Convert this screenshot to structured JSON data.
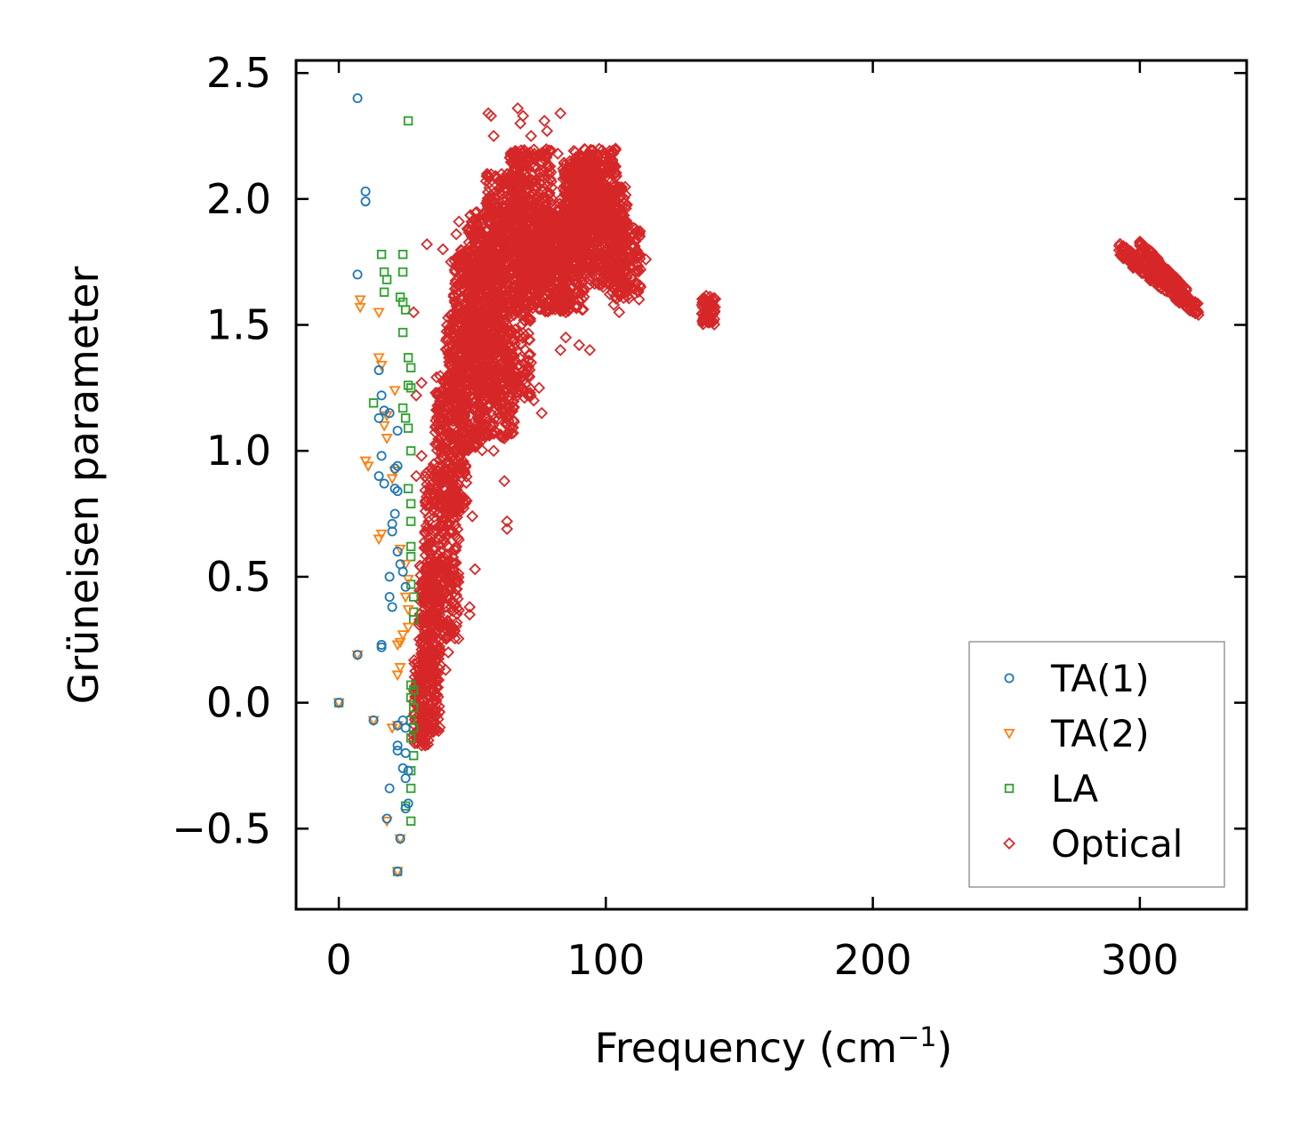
{
  "chart_data": {
    "type": "scatter",
    "title": "",
    "xlabel": "Frequency (cm",
    "xlabel_sup": "−1",
    "xlabel_tail": ")",
    "ylabel": "Grüneisen parameter",
    "xlim": [
      -16,
      340
    ],
    "ylim": [
      -0.82,
      2.55
    ],
    "xticks": [
      0,
      100,
      200,
      300
    ],
    "xtick_labels": [
      "0",
      "100",
      "200",
      "300"
    ],
    "yticks": [
      -0.5,
      0.0,
      0.5,
      1.0,
      1.5,
      2.0,
      2.5
    ],
    "ytick_labels": [
      "−0.5",
      "0.0",
      "0.5",
      "1.0",
      "1.5",
      "2.0",
      "2.5"
    ],
    "grid": false,
    "legend_position": "lower-right",
    "colors": {
      "TA(1)": "#1f77b4",
      "TA(2)": "#ff7f0e",
      "LA": "#2ca02c",
      "Optical": "#d62728"
    },
    "series": [
      {
        "name": "TA(1)",
        "marker": "circle",
        "points": [
          [
            0,
            0.0
          ],
          [
            7,
            2.4
          ],
          [
            10,
            2.03
          ],
          [
            10,
            1.99
          ],
          [
            7,
            1.7
          ],
          [
            15,
            1.32
          ],
          [
            16,
            1.22
          ],
          [
            17,
            1.16
          ],
          [
            15,
            1.13
          ],
          [
            19,
            1.15
          ],
          [
            22,
            1.08
          ],
          [
            16,
            0.98
          ],
          [
            15,
            0.9
          ],
          [
            17,
            0.87
          ],
          [
            21,
            0.93
          ],
          [
            22,
            0.94
          ],
          [
            21,
            0.85
          ],
          [
            22,
            0.84
          ],
          [
            21,
            0.75
          ],
          [
            20,
            0.71
          ],
          [
            20,
            0.68
          ],
          [
            22,
            0.6
          ],
          [
            23,
            0.55
          ],
          [
            24,
            0.52
          ],
          [
            19,
            0.5
          ],
          [
            25,
            0.46
          ],
          [
            19,
            0.42
          ],
          [
            20,
            0.38
          ],
          [
            16,
            0.23
          ],
          [
            16,
            0.22
          ],
          [
            7,
            0.19
          ],
          [
            13,
            -0.07
          ],
          [
            22,
            -0.09
          ],
          [
            24,
            -0.07
          ],
          [
            25,
            -0.1
          ],
          [
            22,
            -0.17
          ],
          [
            22,
            -0.19
          ],
          [
            25,
            -0.2
          ],
          [
            24,
            -0.26
          ],
          [
            25,
            -0.3
          ],
          [
            26,
            -0.27
          ],
          [
            19,
            -0.34
          ],
          [
            26,
            -0.4
          ],
          [
            25,
            -0.42
          ],
          [
            18,
            -0.46
          ],
          [
            23,
            -0.54
          ],
          [
            22,
            -0.67
          ]
        ]
      },
      {
        "name": "TA(2)",
        "marker": "triangle",
        "points": [
          [
            0,
            0.0
          ],
          [
            8,
            1.6
          ],
          [
            8,
            1.57
          ],
          [
            15,
            1.55
          ],
          [
            15,
            1.37
          ],
          [
            16,
            1.34
          ],
          [
            21,
            1.24
          ],
          [
            18,
            1.14
          ],
          [
            17,
            1.1
          ],
          [
            18,
            1.05
          ],
          [
            10,
            0.96
          ],
          [
            11,
            0.94
          ],
          [
            21,
            0.92
          ],
          [
            20,
            0.89
          ],
          [
            16,
            0.67
          ],
          [
            15,
            0.65
          ],
          [
            23,
            0.61
          ],
          [
            25,
            0.55
          ],
          [
            26,
            0.49
          ],
          [
            25,
            0.42
          ],
          [
            26,
            0.37
          ],
          [
            26,
            0.3
          ],
          [
            24,
            0.27
          ],
          [
            23,
            0.24
          ],
          [
            22,
            0.23
          ],
          [
            23,
            0.14
          ],
          [
            22,
            0.11
          ],
          [
            7,
            0.19
          ],
          [
            13,
            -0.07
          ],
          [
            20,
            -0.1
          ],
          [
            22,
            -0.09
          ],
          [
            18,
            -0.47
          ],
          [
            23,
            -0.54
          ],
          [
            22,
            -0.67
          ]
        ]
      },
      {
        "name": "LA",
        "marker": "square",
        "points": [
          [
            0,
            0.0
          ],
          [
            26,
            2.31
          ],
          [
            16,
            1.78
          ],
          [
            24,
            1.78
          ],
          [
            17,
            1.71
          ],
          [
            24,
            1.71
          ],
          [
            18,
            1.68
          ],
          [
            17,
            1.63
          ],
          [
            23,
            1.61
          ],
          [
            24,
            1.59
          ],
          [
            25,
            1.56
          ],
          [
            24,
            1.47
          ],
          [
            26,
            1.37
          ],
          [
            27,
            1.33
          ],
          [
            26,
            1.26
          ],
          [
            27,
            1.25
          ],
          [
            13,
            1.19
          ],
          [
            24,
            1.17
          ],
          [
            25,
            1.13
          ],
          [
            26,
            1.09
          ],
          [
            27,
            1.0
          ],
          [
            26,
            0.85
          ],
          [
            27,
            0.79
          ],
          [
            27,
            0.72
          ],
          [
            27,
            0.62
          ],
          [
            27,
            0.58
          ],
          [
            27,
            0.47
          ],
          [
            28,
            0.42
          ],
          [
            28,
            0.36
          ],
          [
            28,
            0.33
          ],
          [
            27,
            0.07
          ],
          [
            28,
            0.05
          ],
          [
            27,
            0.02
          ],
          [
            28,
            -0.02
          ],
          [
            27,
            -0.07
          ],
          [
            28,
            -0.1
          ],
          [
            27,
            -0.14
          ],
          [
            28,
            -0.21
          ],
          [
            27,
            -0.27
          ],
          [
            27,
            -0.34
          ],
          [
            25,
            -0.41
          ],
          [
            27,
            -0.47
          ],
          [
            22,
            -0.67
          ]
        ]
      },
      {
        "name": "Optical",
        "marker": "diamond",
        "clusters": [
          {
            "f0": 30,
            "f1": 38,
            "g0": -0.12,
            "g1": 0.55,
            "n": 320
          },
          {
            "f0": 28,
            "f1": 34,
            "g0": -0.17,
            "g1": 0.2,
            "n": 110
          },
          {
            "f0": 32,
            "f1": 45,
            "g0": 0.25,
            "g1": 0.95,
            "n": 320
          },
          {
            "f0": 36,
            "f1": 48,
            "g0": 0.75,
            "g1": 1.3,
            "n": 260
          },
          {
            "f0": 40,
            "f1": 54,
            "g0": 1.0,
            "g1": 1.55,
            "n": 300
          },
          {
            "f0": 43,
            "f1": 58,
            "g0": 1.25,
            "g1": 1.8,
            "n": 350
          },
          {
            "f0": 48,
            "f1": 62,
            "g0": 1.4,
            "g1": 1.95,
            "n": 350
          },
          {
            "f0": 52,
            "f1": 66,
            "g0": 1.05,
            "g1": 1.45,
            "n": 200
          },
          {
            "f0": 55,
            "f1": 70,
            "g0": 1.55,
            "g1": 2.1,
            "n": 380
          },
          {
            "f0": 58,
            "f1": 72,
            "g0": 1.2,
            "g1": 1.6,
            "n": 170
          },
          {
            "f0": 64,
            "f1": 80,
            "g0": 1.65,
            "g1": 2.2,
            "n": 380
          },
          {
            "f0": 68,
            "f1": 86,
            "g0": 1.55,
            "g1": 2.0,
            "n": 320
          },
          {
            "f0": 78,
            "f1": 92,
            "g0": 1.55,
            "g1": 1.95,
            "n": 260
          },
          {
            "f0": 84,
            "f1": 98,
            "g0": 1.75,
            "g1": 2.15,
            "n": 320
          },
          {
            "f0": 88,
            "f1": 104,
            "g0": 1.85,
            "g1": 2.2,
            "n": 320
          },
          {
            "f0": 94,
            "f1": 108,
            "g0": 1.65,
            "g1": 2.05,
            "n": 260
          },
          {
            "f0": 100,
            "f1": 113,
            "g0": 1.6,
            "g1": 1.9,
            "n": 150
          },
          {
            "f0": 136,
            "f1": 141,
            "g0": 1.5,
            "g1": 1.62,
            "n": 70
          }
        ],
        "points": [
          [
            33,
            1.82
          ],
          [
            28,
            1.55
          ],
          [
            31,
            1.27
          ],
          [
            29,
            1.22
          ],
          [
            31,
            0.98
          ],
          [
            29,
            0.9
          ],
          [
            36,
            0.55
          ],
          [
            43,
            0.73
          ],
          [
            44,
            0.62
          ],
          [
            50,
            0.74
          ],
          [
            51,
            0.53
          ],
          [
            49,
            0.38
          ],
          [
            49,
            0.35
          ],
          [
            40,
            0.38
          ],
          [
            41,
            0.2
          ],
          [
            40,
            0.13
          ],
          [
            30,
            -0.12
          ],
          [
            31,
            -0.17
          ],
          [
            62,
            0.88
          ],
          [
            63,
            0.72
          ],
          [
            63,
            0.69
          ],
          [
            58,
            1.0
          ],
          [
            62,
            1.05
          ],
          [
            72,
            1.35
          ],
          [
            75,
            1.25
          ],
          [
            83,
            1.4
          ],
          [
            85,
            1.45
          ],
          [
            90,
            1.42
          ],
          [
            94,
            1.4
          ],
          [
            56,
            2.34
          ],
          [
            57,
            2.33
          ],
          [
            58,
            2.25
          ],
          [
            67,
            2.36
          ],
          [
            68,
            2.3
          ],
          [
            69,
            2.33
          ],
          [
            72,
            2.25
          ],
          [
            66,
            2.17
          ],
          [
            77,
            2.31
          ],
          [
            78,
            2.27
          ],
          [
            83,
            2.34
          ],
          [
            82,
            2.18
          ],
          [
            84,
            2.12
          ],
          [
            113,
            1.72
          ],
          [
            115,
            1.76
          ],
          [
            103,
            1.58
          ],
          [
            105,
            1.55
          ],
          [
            113,
            1.65
          ],
          [
            45,
            1.91
          ],
          [
            44,
            1.86
          ],
          [
            39,
            1.8
          ],
          [
            42,
            1.75
          ],
          [
            82,
            1.58
          ],
          [
            85,
            1.55
          ],
          [
            73,
            1.2
          ],
          [
            76,
            1.15
          ]
        ],
        "lines": [
          {
            "x": [
              292,
              322
            ],
            "y": [
              1.8,
              1.56
            ],
            "n": 220,
            "jitter": 0.03
          },
          {
            "x": [
              300,
              318
            ],
            "y": [
              1.82,
              1.62
            ],
            "n": 90,
            "jitter": 0.02
          }
        ]
      }
    ]
  }
}
